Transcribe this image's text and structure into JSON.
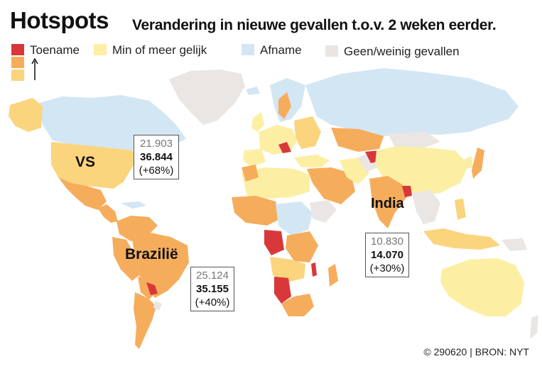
{
  "header": {
    "title": "Hotspots",
    "subtitle": "Verandering in nieuwe gevallen t.o.v. 2 weken eerder."
  },
  "legend": {
    "increase": "Toename",
    "stable": "Min of meer gelijk",
    "decrease": "Afname",
    "none": "Geen/weinig gevallen"
  },
  "colors": {
    "strong_increase": "#d9383a",
    "moderate_increase": "#f5ad5c",
    "slight_increase": "#fbd47e",
    "stable": "#fcefa4",
    "decrease": "#d3e6f3",
    "none": "#e9e6e3"
  },
  "callouts": {
    "us": {
      "label": "VS",
      "previous": "21.903",
      "current": "36.844",
      "change": "(+68%)"
    },
    "brazil": {
      "label": "Brazilië",
      "previous": "25.124",
      "current": "35.155",
      "change": "(+40%)"
    },
    "india": {
      "label": "India",
      "previous": "10.830",
      "current": "14.070",
      "change": "(+30%)"
    }
  },
  "footer": {
    "credit": "© 290620 | BRON: NYT"
  }
}
